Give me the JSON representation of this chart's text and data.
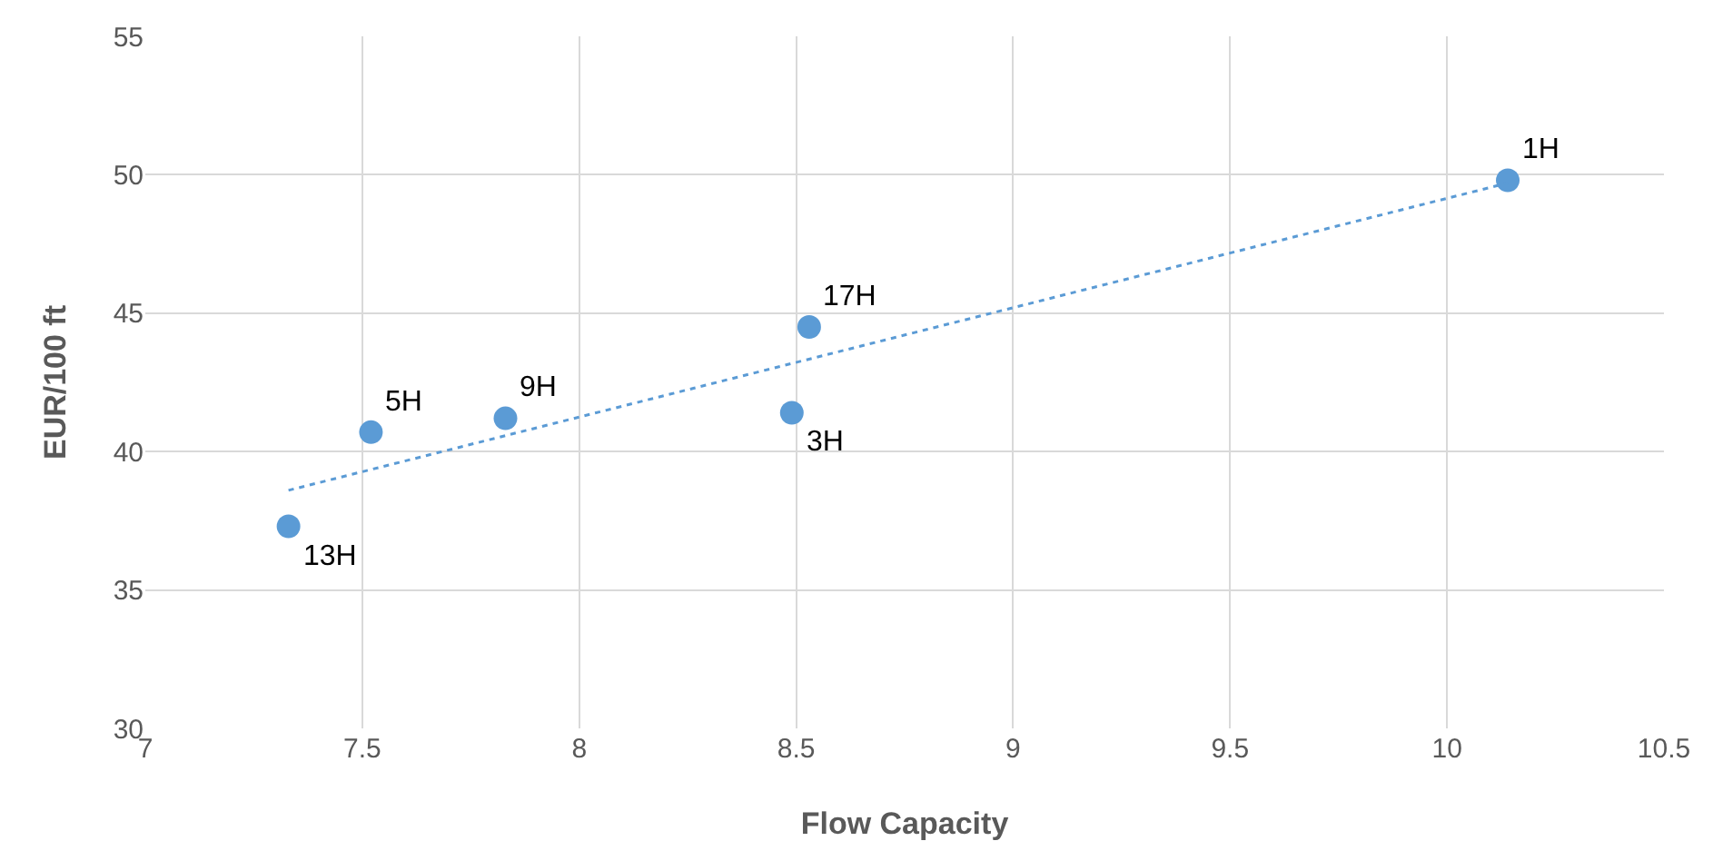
{
  "chart_data": {
    "type": "scatter",
    "xlabel": "Flow Capacity",
    "ylabel": "EUR/100 ft",
    "xlim": [
      7,
      10.5
    ],
    "xticks": [
      7,
      7.5,
      8,
      8.5,
      9,
      9.5,
      10,
      10.5
    ],
    "ylim": [
      30,
      55
    ],
    "yticks": [
      30,
      35,
      40,
      45,
      50,
      55
    ],
    "grid": true,
    "marker": "circle",
    "annotations": [
      {
        "text": "13H",
        "x": 7.33,
        "y": 37.3
      },
      {
        "text": "5H",
        "x": 7.52,
        "y": 40.7
      },
      {
        "text": "9H",
        "x": 7.83,
        "y": 41.2
      },
      {
        "text": "3H",
        "x": 8.49,
        "y": 41.4
      },
      {
        "text": "17H",
        "x": 8.53,
        "y": 44.5
      },
      {
        "text": "1H",
        "x": 10.14,
        "y": 49.8
      }
    ],
    "series": [
      {
        "color": "#5b9bd5",
        "x": [
          7.33,
          7.52,
          7.83,
          8.49,
          8.53,
          10.14
        ],
        "values": [
          37.3,
          40.7,
          41.2,
          41.4,
          44.5,
          49.8
        ]
      },
      {
        "type": "line",
        "color": "#5b9bd5",
        "line_style": "dotted",
        "marker": "none",
        "x": [
          7.33,
          10.14
        ],
        "values": [
          38.6,
          49.7
        ]
      }
    ]
  }
}
